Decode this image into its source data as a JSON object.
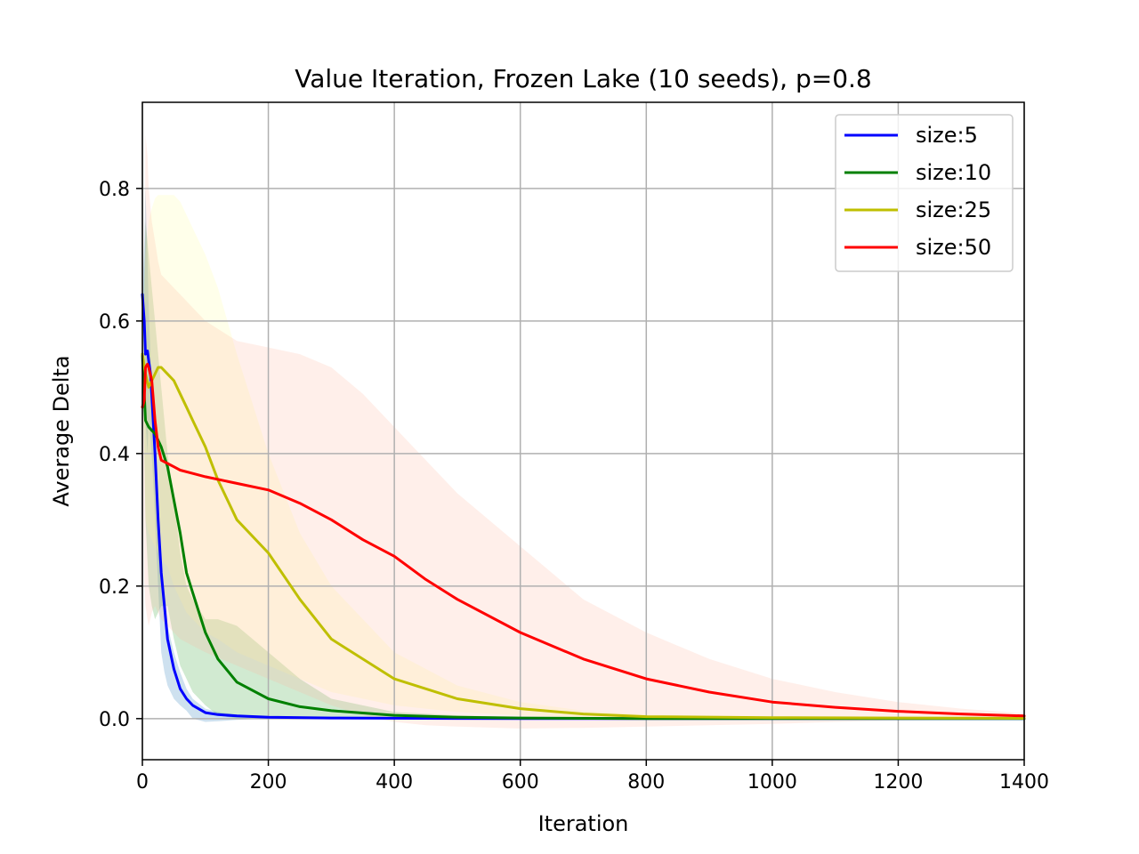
{
  "chart_data": {
    "type": "line",
    "title": "Value Iteration, Frozen Lake (10 seeds), p=0.8",
    "xlabel": "Iteration",
    "ylabel": "Average Delta",
    "xlim": [
      0,
      1400
    ],
    "ylim": [
      -0.062,
      0.93
    ],
    "xticks": [
      0,
      200,
      400,
      600,
      800,
      1000,
      1200,
      1400
    ],
    "xtick_labels": [
      "0",
      "200",
      "400",
      "600",
      "800",
      "1000",
      "1200",
      "1400"
    ],
    "yticks": [
      0.0,
      0.2,
      0.4,
      0.6,
      0.8
    ],
    "ytick_labels": [
      "0.0",
      "0.2",
      "0.4",
      "0.6",
      "0.8"
    ],
    "grid": true,
    "legend_position": "top-right",
    "series": [
      {
        "name": "size:5",
        "color": "#0000ff",
        "band_color": "#1f77b4",
        "x": [
          0,
          3,
          5,
          8,
          10,
          13,
          16,
          20,
          25,
          30,
          35,
          40,
          50,
          60,
          70,
          80,
          100,
          120,
          150,
          200,
          300,
          400,
          600,
          800,
          1000,
          1200,
          1400
        ],
        "y": [
          0.64,
          0.6,
          0.55,
          0.555,
          0.54,
          0.52,
          0.47,
          0.4,
          0.3,
          0.22,
          0.17,
          0.12,
          0.075,
          0.045,
          0.03,
          0.02,
          0.009,
          0.006,
          0.004,
          0.002,
          0.001,
          0.0005,
          0.0,
          0.0,
          0.0,
          0.0,
          0.0
        ],
        "upper": [
          0.64,
          0.72,
          0.8,
          0.7,
          0.62,
          0.55,
          0.48,
          0.4,
          0.3,
          0.23,
          0.18,
          0.14,
          0.1,
          0.07,
          0.045,
          0.03,
          0.015,
          0.01,
          0.006,
          0.003,
          0.0015,
          0.001,
          0.0,
          0.0,
          0.0,
          0.0,
          0.0
        ],
        "lower": [
          0.64,
          0.55,
          0.45,
          0.4,
          0.45,
          0.42,
          0.38,
          0.3,
          0.2,
          0.1,
          0.07,
          0.05,
          0.03,
          0.02,
          0.012,
          0.0,
          -0.005,
          -0.004,
          -0.002,
          0.0,
          0.0,
          0.0,
          0.0,
          0.0,
          0.0,
          0.0,
          0.0
        ]
      },
      {
        "name": "size:10",
        "color": "#008000",
        "band_color": "#2ca02c",
        "x": [
          0,
          5,
          10,
          15,
          20,
          30,
          40,
          50,
          60,
          70,
          80,
          100,
          120,
          150,
          200,
          250,
          300,
          400,
          500,
          600,
          800,
          1000,
          1200,
          1400
        ],
        "y": [
          0.55,
          0.45,
          0.44,
          0.435,
          0.43,
          0.41,
          0.38,
          0.33,
          0.28,
          0.22,
          0.19,
          0.13,
          0.09,
          0.055,
          0.03,
          0.018,
          0.012,
          0.005,
          0.002,
          0.001,
          0.0,
          0.0,
          0.0,
          0.0
        ],
        "upper": [
          0.55,
          0.75,
          0.7,
          0.65,
          0.6,
          0.5,
          0.4,
          0.33,
          0.25,
          0.2,
          0.18,
          0.15,
          0.15,
          0.14,
          0.1,
          0.06,
          0.03,
          0.01,
          0.005,
          0.002,
          0.001,
          0.0,
          0.0,
          0.0
        ],
        "lower": [
          0.55,
          0.3,
          0.2,
          0.17,
          0.15,
          0.17,
          0.17,
          0.12,
          0.08,
          0.06,
          0.04,
          0.02,
          0.005,
          0.0,
          0.0,
          0.0,
          0.0,
          0.0,
          0.0,
          0.0,
          0.0,
          0.0,
          0.0,
          0.0
        ]
      },
      {
        "name": "size:25",
        "color": "#bfbf00",
        "band_color": "#ffffa0",
        "x": [
          0,
          5,
          10,
          15,
          20,
          25,
          30,
          40,
          50,
          60,
          70,
          80,
          100,
          120,
          150,
          200,
          250,
          300,
          400,
          500,
          600,
          700,
          800,
          1000,
          1200,
          1400
        ],
        "y": [
          0.55,
          0.52,
          0.5,
          0.51,
          0.52,
          0.53,
          0.53,
          0.52,
          0.51,
          0.49,
          0.47,
          0.45,
          0.41,
          0.36,
          0.3,
          0.25,
          0.18,
          0.12,
          0.06,
          0.03,
          0.015,
          0.007,
          0.003,
          0.0015,
          0.001,
          0.0005
        ],
        "upper": [
          0.55,
          0.7,
          0.75,
          0.77,
          0.785,
          0.79,
          0.79,
          0.79,
          0.79,
          0.78,
          0.76,
          0.74,
          0.7,
          0.65,
          0.55,
          0.4,
          0.28,
          0.2,
          0.1,
          0.05,
          0.025,
          0.012,
          0.006,
          0.003,
          0.002,
          0.001
        ],
        "lower": [
          0.55,
          0.3,
          0.28,
          0.27,
          0.26,
          0.25,
          0.24,
          0.23,
          0.2,
          0.18,
          0.16,
          0.15,
          0.13,
          0.12,
          0.1,
          0.08,
          0.06,
          0.04,
          0.02,
          0.01,
          0.005,
          0.002,
          0.001,
          0.0,
          0.0,
          0.0
        ]
      },
      {
        "name": "size:50",
        "color": "#ff0000",
        "band_color": "#ffb4a0",
        "x": [
          0,
          3,
          5,
          8,
          10,
          15,
          20,
          25,
          30,
          40,
          50,
          60,
          80,
          100,
          150,
          200,
          250,
          300,
          350,
          400,
          450,
          500,
          600,
          700,
          800,
          900,
          1000,
          1100,
          1200,
          1300,
          1400
        ],
        "y": [
          0.47,
          0.48,
          0.53,
          0.535,
          0.53,
          0.51,
          0.45,
          0.41,
          0.39,
          0.385,
          0.38,
          0.375,
          0.37,
          0.365,
          0.355,
          0.345,
          0.325,
          0.3,
          0.27,
          0.245,
          0.21,
          0.18,
          0.13,
          0.09,
          0.06,
          0.04,
          0.025,
          0.017,
          0.011,
          0.007,
          0.004
        ],
        "upper": [
          0.47,
          0.6,
          0.88,
          0.85,
          0.8,
          0.75,
          0.72,
          0.69,
          0.67,
          0.66,
          0.65,
          0.64,
          0.62,
          0.6,
          0.57,
          0.56,
          0.55,
          0.53,
          0.49,
          0.44,
          0.39,
          0.34,
          0.26,
          0.18,
          0.13,
          0.09,
          0.06,
          0.04,
          0.025,
          0.015,
          0.008
        ],
        "lower": [
          0.47,
          0.2,
          0.17,
          0.15,
          0.14,
          0.16,
          0.17,
          0.16,
          0.15,
          0.14,
          0.13,
          0.12,
          0.11,
          0.1,
          0.08,
          0.06,
          0.04,
          0.02,
          0.005,
          -0.005,
          -0.01,
          -0.012,
          -0.015,
          -0.014,
          -0.012,
          -0.01,
          -0.008,
          -0.005,
          -0.003,
          -0.002,
          -0.001
        ]
      }
    ]
  }
}
